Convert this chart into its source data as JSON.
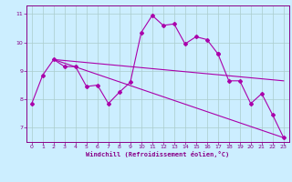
{
  "line_main": {
    "x": [
      0,
      1,
      2,
      3,
      4,
      5,
      6,
      7,
      8,
      9,
      10,
      11,
      12,
      13,
      14,
      15,
      16,
      17
    ],
    "y": [
      7.85,
      8.85,
      9.4,
      9.15,
      9.15,
      8.45,
      8.5,
      7.85,
      8.25,
      8.6,
      10.35,
      10.95,
      10.6,
      10.65,
      9.95,
      10.2,
      10.1,
      9.6
    ]
  },
  "line_tail": {
    "x": [
      17,
      18,
      19,
      20,
      21,
      22,
      23
    ],
    "y": [
      9.6,
      8.65,
      8.65,
      7.85,
      8.2,
      7.45,
      6.65
    ]
  },
  "line_diag1": {
    "x": [
      2,
      23
    ],
    "y": [
      9.4,
      8.65
    ]
  },
  "line_diag2": {
    "x": [
      2,
      23
    ],
    "y": [
      9.4,
      6.65
    ]
  },
  "color": "#aa00aa",
  "bg_color": "#cceeff",
  "grid_color": "#aacccc",
  "axis_color": "#880088",
  "xlabel": "Windchill (Refroidissement éolien,°C)",
  "xticks": [
    0,
    1,
    2,
    3,
    4,
    5,
    6,
    7,
    8,
    9,
    10,
    11,
    12,
    13,
    14,
    15,
    16,
    17,
    18,
    19,
    20,
    21,
    22,
    23
  ],
  "yticks": [
    7,
    8,
    9,
    10,
    11
  ],
  "xlim": [
    -0.5,
    23.5
  ],
  "ylim": [
    6.5,
    11.3
  ]
}
